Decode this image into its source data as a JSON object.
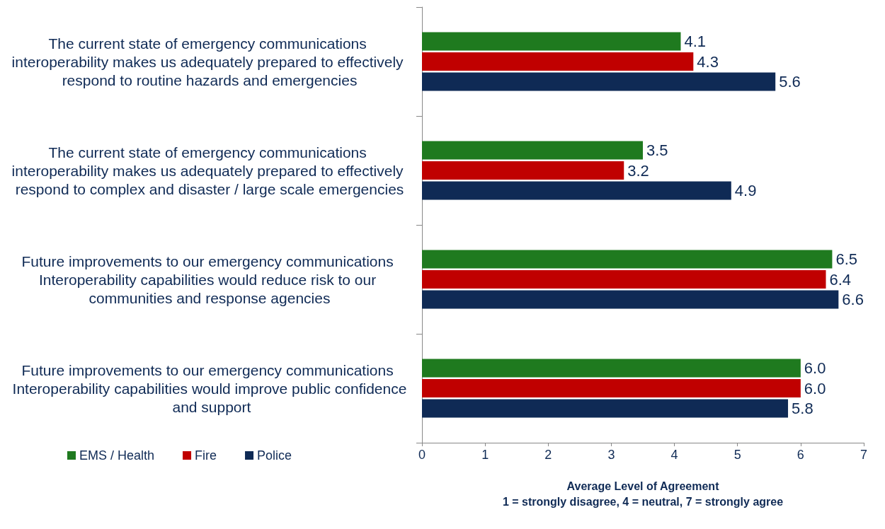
{
  "chart_data": {
    "type": "bar",
    "orientation": "horizontal",
    "xlabel": "Average Level of Agreement\n1 = strongly disagree, 4 = neutral, 7 = strongly agree",
    "categories": [
      "The current state of emergency communications interoperability makes us adequately prepared to effectively respond to routine hazards and emergencies",
      "The current state of emergency communications interoperability makes us adequately prepared to effectively respond to complex and disaster / large scale emergencies",
      "Future improvements to our emergency communications Interoperability capabilities would reduce risk to our communities and response agencies",
      "Future improvements to our emergency communications Interoperability capabilities would improve public confidence and support"
    ],
    "series": [
      {
        "name": "EMS / Health",
        "color": "#1f7a1f",
        "values": [
          4.1,
          3.5,
          6.5,
          6.0
        ],
        "value_labels": [
          "4.1",
          "3.5",
          "6.5",
          "6.0"
        ]
      },
      {
        "name": "Fire",
        "color": "#c00000",
        "values": [
          4.3,
          3.2,
          6.4,
          6.0
        ],
        "value_labels": [
          "4.3",
          "3.2",
          "6.4",
          "6.0"
        ]
      },
      {
        "name": "Police",
        "color": "#0f2a55",
        "values": [
          5.6,
          4.9,
          6.6,
          5.8
        ],
        "value_labels": [
          "5.6",
          "4.9",
          "6.6",
          "5.8"
        ]
      }
    ],
    "xlim": [
      0,
      7
    ],
    "xticks": [
      0,
      1,
      2,
      3,
      4,
      5,
      6,
      7
    ],
    "grid": false,
    "legend": "bottom left"
  }
}
